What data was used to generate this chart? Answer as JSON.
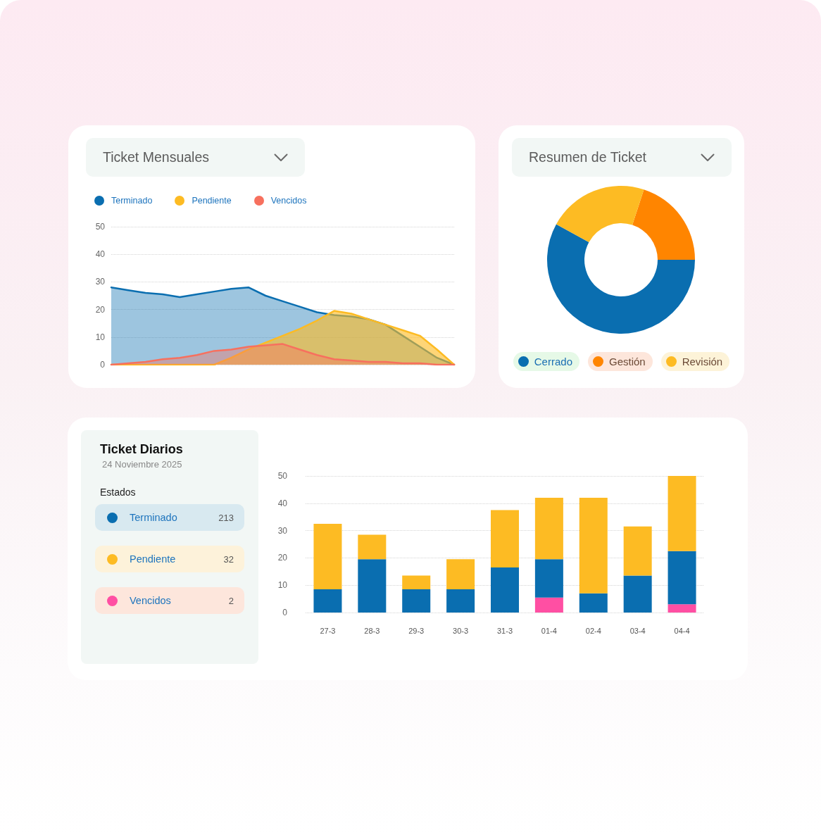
{
  "chart_data": [
    {
      "type": "area",
      "title": "Ticket Mensuales",
      "categories": [
        null,
        null,
        null,
        null,
        null,
        null,
        null,
        null,
        null,
        null,
        null,
        null,
        null,
        null,
        null,
        null,
        null,
        null,
        null,
        null,
        null
      ],
      "series": [
        {
          "name": "Terminado",
          "color": "#0a6eb0",
          "values": [
            28,
            27,
            26,
            25.5,
            24.5,
            25.5,
            26.5,
            27.5,
            28,
            25,
            23,
            21,
            19,
            18,
            17.5,
            16.5,
            14.5,
            10.5,
            6.5,
            2.5,
            0
          ]
        },
        {
          "name": "Pendiente",
          "color": "#fdbb23",
          "values": [
            0,
            0,
            0,
            0,
            0,
            0,
            0,
            2.5,
            5.5,
            8,
            10.5,
            13,
            16,
            19.5,
            18.5,
            16.5,
            14.5,
            12.5,
            10.5,
            5.5,
            0
          ]
        },
        {
          "name": "Vencidos",
          "color": "#f7705e",
          "values": [
            0,
            0.5,
            1,
            2,
            2.5,
            3.5,
            5,
            5.5,
            6.5,
            7,
            7.5,
            5.5,
            3.5,
            2,
            1.5,
            1,
            1,
            0.5,
            0.5,
            0,
            0
          ]
        }
      ],
      "ylim": [
        0,
        50
      ],
      "yticks": [
        0,
        10,
        20,
        30,
        40,
        50
      ],
      "grid": "y",
      "legend": "top left",
      "tick_labels": "y",
      "marker": "none"
    },
    {
      "type": "donut",
      "title": "Resumen de Ticket",
      "categories": [
        "Cerrado",
        "Gestión",
        "Revisión"
      ],
      "values": [
        58,
        20,
        22
      ],
      "colors": [
        "#0a6eb0",
        "#ff8500",
        "#fdbb23"
      ],
      "legend": "bottom"
    },
    {
      "type": "other",
      "title": "Ticket Diarios",
      "subtitle": "24 Noviembre 2025"
    },
    {
      "type": "bar",
      "categories": [
        "27-3",
        "28-3",
        "29-3",
        "30-3",
        "31-3",
        "01-4",
        "02-4",
        "03-4",
        "04-4"
      ],
      "series": [
        {
          "name": "Vencidos",
          "color": "#ff4fa3",
          "values": [
            null,
            null,
            null,
            null,
            null,
            5.5,
            null,
            null,
            3
          ]
        },
        {
          "name": "Terminado",
          "color": "#0a6eb0",
          "values": [
            8.5,
            19.5,
            8.5,
            8.5,
            16.5,
            14,
            7,
            13.5,
            19.5
          ]
        },
        {
          "name": "Pendiente",
          "color": "#fdbb23",
          "values": [
            24,
            9,
            5,
            11,
            21,
            22.5,
            35,
            18,
            27.5
          ]
        }
      ],
      "stacked": true,
      "ylim": [
        0,
        50
      ],
      "yticks": [
        0,
        10,
        20,
        30,
        40,
        50
      ],
      "grid": "y",
      "legend": "left",
      "legend_title": "Estados",
      "annotations": [
        "213",
        "32",
        "2"
      ]
    }
  ]
}
